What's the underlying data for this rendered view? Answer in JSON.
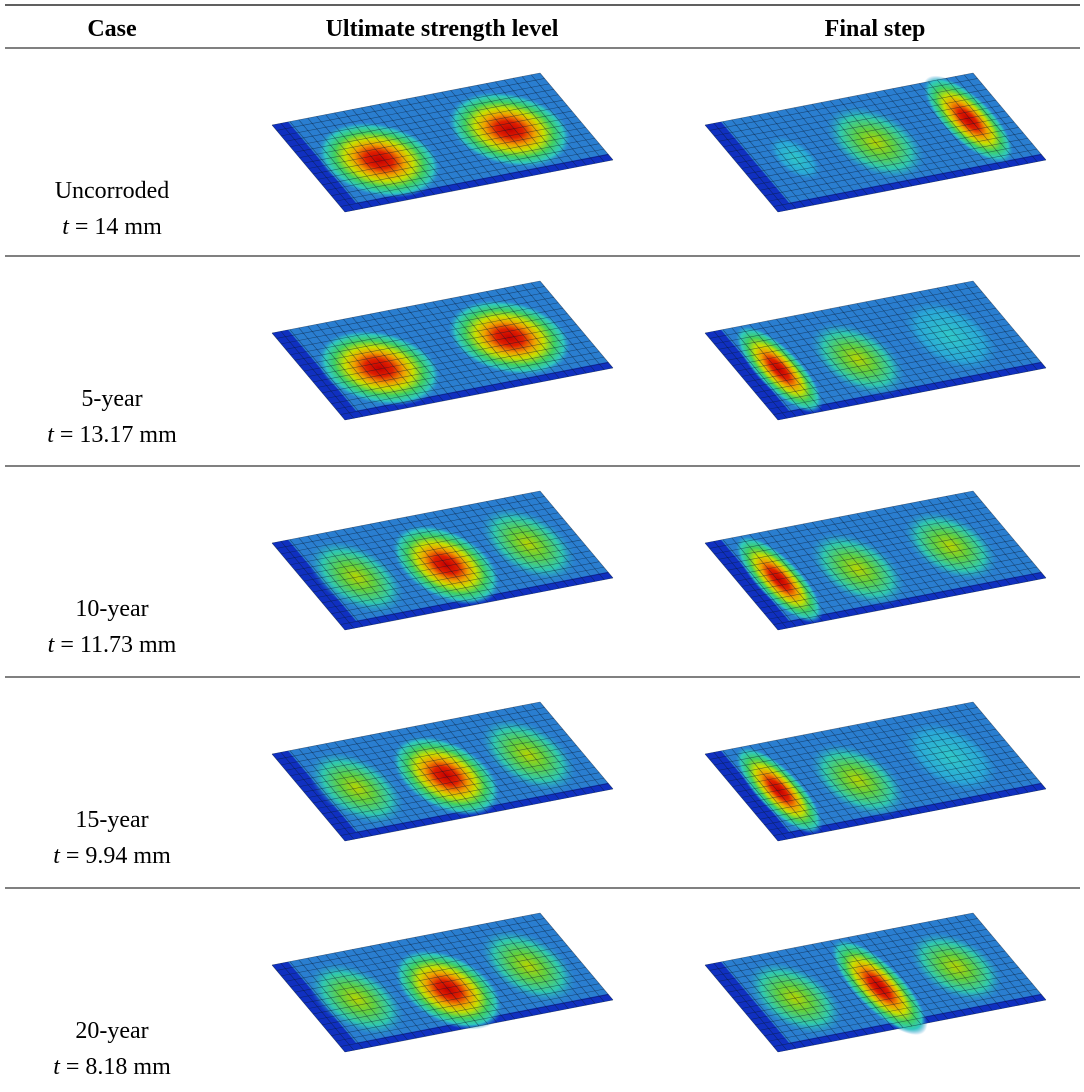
{
  "table": {
    "header": [
      "Case",
      "Ultimate strength level",
      "Final step"
    ],
    "rows": [
      {
        "case": "Uncorroded",
        "symbol": "t",
        "value": "= 14 mm"
      },
      {
        "case": "5-year",
        "symbol": "t",
        "value": "= 13.17 mm"
      },
      {
        "case": "10-year",
        "symbol": "t",
        "value": "= 11.73 mm"
      },
      {
        "case": "15-year",
        "symbol": "t",
        "value": "= 9.94 mm"
      },
      {
        "case": "20-year",
        "symbol": "t",
        "value": "= 8.18 mm"
      }
    ]
  }
}
